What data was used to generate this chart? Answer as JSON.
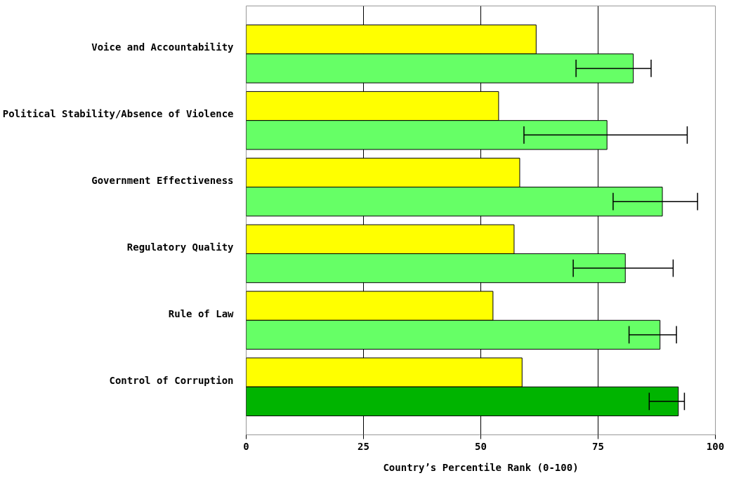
{
  "chart_data": {
    "type": "bar",
    "orientation": "horizontal",
    "xlabel": "Country’s Percentile Rank (0-100)",
    "categories": [
      "Voice and Accountability",
      "Political Stability/Absence of Violence",
      "Government Effectiveness",
      "Regulatory Quality",
      "Rule of Law",
      "Control of Corruption"
    ],
    "series": [
      {
        "color": "#ffff00",
        "values": [
          61.8,
          53.8,
          58.3,
          57.1,
          52.6,
          58.8
        ]
      },
      {
        "colors": [
          "#66ff66",
          "#66ff66",
          "#66ff66",
          "#66ff66",
          "#66ff66",
          "#00b400"
        ],
        "values": [
          82.5,
          76.9,
          88.7,
          80.8,
          88.2,
          92.1
        ],
        "errors": [
          [
            70.3,
            86.3
          ],
          [
            59.2,
            94.0
          ],
          [
            78.2,
            96.2
          ],
          [
            69.7,
            91.0
          ],
          [
            81.6,
            91.7
          ],
          [
            85.9,
            93.4
          ]
        ]
      }
    ],
    "xlim": [
      0,
      100
    ],
    "xticks": [
      0,
      25,
      50,
      75,
      100
    ],
    "grid": "x"
  }
}
